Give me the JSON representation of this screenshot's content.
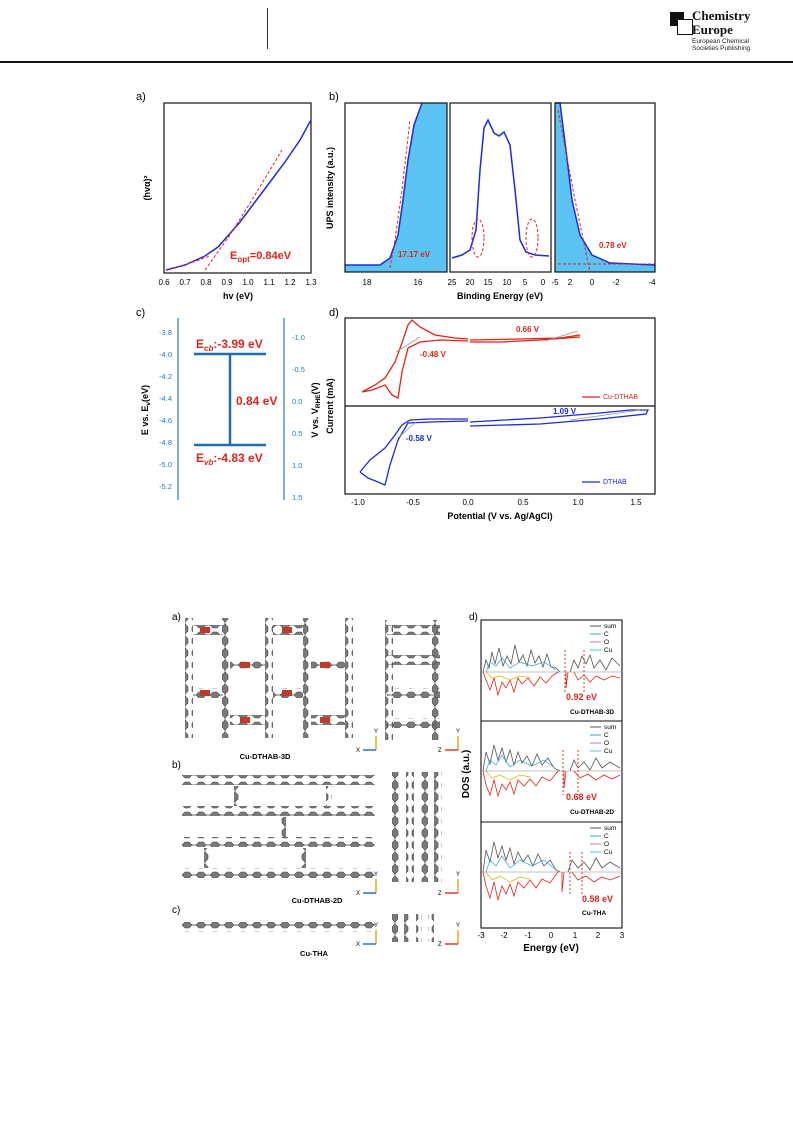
{
  "header": {
    "brand_line1": "Chemistry",
    "brand_line2": "Europe",
    "brand_sub1": "European Chemical",
    "brand_sub2": "Societies Publishing"
  },
  "figure1": {
    "panel_labels": [
      "a)",
      "b)",
      "c)",
      "d)"
    ],
    "panel_a": {
      "ylabel": "(hvα)²",
      "xlabel": "hv (eV)",
      "xticks": [
        "0.6",
        "0.7",
        "0.8",
        "0.9",
        "1.0",
        "1.1",
        "1.2",
        "1.3"
      ],
      "annotation": "E_opt=0.84eV",
      "annotation_main": "E",
      "annotation_sub": "opt",
      "annotation_val": "=0.84eV"
    },
    "panel_b": {
      "ylabel": "UPS intensity (a.u.)",
      "xlabel": "Binding Energy (eV)",
      "left_xticks": [
        "18",
        "16"
      ],
      "mid_xticks": [
        "25",
        "20",
        "15",
        "10",
        "5",
        "0"
      ],
      "right_xticks": [
        "-5",
        "2",
        "0",
        "-2",
        "-4"
      ],
      "left_annotation": "17.17 eV",
      "right_annotation": "0.78 eV"
    },
    "panel_c": {
      "left_axis_label": "E vs. E_v(eV)",
      "left_axis_main": "E vs. E",
      "left_axis_sub": "v",
      "left_axis_tail": "(eV)",
      "right_axis_label": "V vs. V_RHE(V)",
      "right_axis_main": "V vs. V",
      "right_axis_sub": "RHE",
      "right_axis_tail": "(V)",
      "left_ticks": [
        "-3.8",
        "-4.0",
        "-4.2",
        "-4.4",
        "-4.6",
        "-4.8",
        "-5.0",
        "-5.2"
      ],
      "right_ticks": [
        "-1.0",
        "-0.5",
        "0.0",
        "0.5",
        "1.0",
        "1.5"
      ],
      "ecb": {
        "main": "E",
        "sub": "cb",
        "value": ":-3.99 eV"
      },
      "gap": "0.84 eV",
      "evb": {
        "main": "E",
        "sub": "vb",
        "value": ":-4.83 eV"
      }
    },
    "panel_d": {
      "ylabel": "Current (mA)",
      "xlabel": "Potential (V vs. Ag/AgCl)",
      "xticks": [
        "-1.0",
        "-0.5",
        "0.0",
        "0.5",
        "1.0",
        "1.5"
      ],
      "top_labels": [
        "0.66 V",
        "-0.48 V"
      ],
      "top_legend": "Cu-DTHAB",
      "bottom_labels": [
        "1.09 V",
        "-0.58 V"
      ],
      "bottom_legend": "DTHAB"
    }
  },
  "figure2": {
    "panel_labels": [
      "a)",
      "b)",
      "c)",
      "d)"
    ],
    "structures": [
      "Cu-DTHAB-3D",
      "Cu-DTHAB-2D",
      "Cu-THA"
    ],
    "axis_letters": {
      "x": "X",
      "y": "Y",
      "z": "Z"
    },
    "dos": {
      "ylabel": "DOS (a.u.)",
      "xlabel": "Energy (eV)",
      "xticks": [
        "-3",
        "-2",
        "-1",
        "0",
        "1",
        "2",
        "3"
      ],
      "legend": [
        "sum",
        "C",
        "O",
        "Cu"
      ],
      "panels": [
        {
          "name": "Cu-DTHAB-3D",
          "gap": "0.92 eV"
        },
        {
          "name": "Cu-DTHAB-2D",
          "gap": "0.68 eV"
        },
        {
          "name": "Cu-THA",
          "gap": "0.58 eV"
        }
      ]
    }
  },
  "colors": {
    "red": "#e0251c",
    "blue": "#1f2bd6",
    "fill": "#5cc4f3",
    "teal": "#1f7fb5"
  }
}
